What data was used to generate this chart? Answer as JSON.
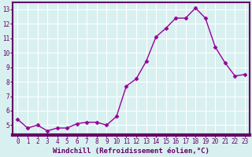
{
  "x": [
    0,
    1,
    2,
    3,
    4,
    5,
    6,
    7,
    8,
    9,
    10,
    11,
    12,
    13,
    14,
    15,
    16,
    17,
    18,
    19,
    20,
    21,
    22,
    23
  ],
  "y": [
    5.4,
    4.8,
    5.0,
    4.6,
    4.8,
    4.8,
    5.1,
    5.2,
    5.2,
    5.0,
    5.6,
    7.7,
    8.2,
    9.4,
    11.1,
    11.7,
    12.4,
    12.4,
    13.1,
    12.4,
    10.4,
    9.3,
    8.4,
    8.5
  ],
  "line_color": "#990099",
  "marker": "D",
  "marker_size": 2.5,
  "bg_color": "#d8f0f0",
  "plot_bg_color": "#d8f0f0",
  "grid_color": "#ffffff",
  "xlabel": "Windchill (Refroidissement éolien,°C)",
  "xlabel_color": "#660066",
  "tick_color": "#660066",
  "axis_bar_color": "#660066",
  "ylim": [
    4.3,
    13.5
  ],
  "xlim": [
    -0.5,
    23.5
  ],
  "yticks": [
    5,
    6,
    7,
    8,
    9,
    10,
    11,
    12,
    13
  ],
  "xticks": [
    0,
    1,
    2,
    3,
    4,
    5,
    6,
    7,
    8,
    9,
    10,
    11,
    12,
    13,
    14,
    15,
    16,
    17,
    18,
    19,
    20,
    21,
    22,
    23
  ],
  "tick_fontsize": 5.5,
  "xlabel_fontsize": 6.5,
  "linewidth": 1.0
}
